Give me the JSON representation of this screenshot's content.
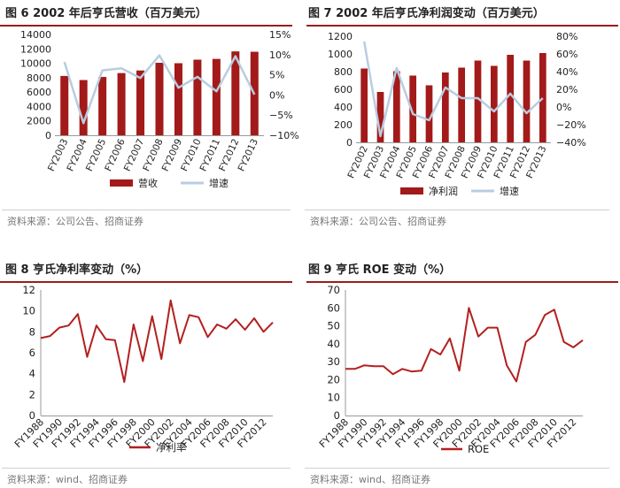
{
  "source_text_1": "资料来源：公司公告、招商证券",
  "source_text_2": "资料来源：wind、招商证券",
  "chart_data": [
    {
      "id": "c1",
      "type": "bar+line",
      "title": "图 6 2002 年后亨氏营收（百万美元）",
      "categories": [
        "FY2003",
        "FY2004",
        "FY2005",
        "FY2006",
        "FY2007",
        "FY2008",
        "FY2009",
        "FY2010",
        "FY2011",
        "FY2012",
        "FY2013"
      ],
      "bar_series": {
        "name": "营收",
        "color": "#a31a1a",
        "values": [
          8240,
          7670,
          8100,
          8640,
          9000,
          10070,
          10010,
          10500,
          10610,
          11650,
          11600
        ]
      },
      "line_series": {
        "name": "增速",
        "color": "#b8cde0",
        "values": [
          8.2,
          -7.0,
          6.1,
          6.6,
          4.2,
          9.8,
          1.8,
          4.5,
          0.9,
          9.6,
          0.1
        ]
      },
      "y_left": {
        "min": 0,
        "max": 14000,
        "step": 2000
      },
      "y_right": {
        "min": -10,
        "max": 15,
        "step": 5,
        "suffix": "%"
      },
      "right_tick_labels": [
        "15%",
        "10%",
        "5%",
        "0%",
        "−5%",
        "−10%"
      ]
    },
    {
      "id": "c2",
      "type": "bar+line",
      "title": "图 7 2002 年后亨氏净利润变动（百万美元）",
      "categories": [
        "FY2002",
        "FY2003",
        "FY2004",
        "FY2005",
        "FY2006",
        "FY2007",
        "FY2008",
        "FY2009",
        "FY2010",
        "FY2011",
        "FY2012",
        "FY2013"
      ],
      "bar_series": {
        "name": "净利润",
        "color": "#a31a1a",
        "values": [
          835,
          570,
          805,
          755,
          645,
          790,
          845,
          925,
          865,
          990,
          925,
          1010
        ]
      },
      "line_series": {
        "name": "增速",
        "color": "#b8cde0",
        "values": [
          74,
          -33,
          44,
          -8,
          -15,
          22,
          10,
          10,
          -5,
          15,
          -7,
          10
        ]
      },
      "y_left": {
        "min": 0,
        "max": 1200,
        "step": 200
      },
      "y_right": {
        "min": -40,
        "max": 80,
        "step": 20,
        "suffix": "%"
      },
      "right_tick_labels": [
        "80%",
        "60%",
        "40%",
        "20%",
        "0%",
        "−20%",
        "−40%"
      ]
    },
    {
      "id": "c3",
      "type": "line",
      "title": "图 8 亨氏净利率变动（%）",
      "categories": [
        "FY1988",
        "FY1989",
        "FY1990",
        "FY1991",
        "FY1992",
        "FY1993",
        "FY1994",
        "FY1995",
        "FY1996",
        "FY1997",
        "FY1998",
        "FY1999",
        "FY2000",
        "FY2001",
        "FY2002",
        "FY2003",
        "FY2004",
        "FY2005",
        "FY2006",
        "FY2007",
        "FY2008",
        "FY2009",
        "FY2010",
        "FY2011",
        "FY2012",
        "FY2013"
      ],
      "tick_labels": [
        "FY1988",
        "FY1990",
        "FY1992",
        "FY1994",
        "FY1996",
        "FY1998",
        "FY2000",
        "FY2002",
        "FY2004",
        "FY2006",
        "FY2008",
        "FY2010",
        "FY2012"
      ],
      "series": {
        "name": "净利率",
        "color": "#b3201f",
        "values": [
          7.4,
          7.6,
          8.4,
          8.6,
          9.7,
          5.6,
          8.6,
          7.3,
          7.2,
          3.2,
          8.7,
          5.2,
          9.5,
          5.4,
          11.0,
          6.9,
          9.6,
          9.4,
          7.5,
          8.7,
          8.3,
          9.2,
          8.2,
          9.3,
          8.0,
          8.9
        ]
      },
      "y": {
        "min": 0,
        "max": 12,
        "step": 2
      }
    },
    {
      "id": "c4",
      "type": "line",
      "title": "图 9 亨氏 ROE 变动（%）",
      "categories": [
        "FY1988",
        "FY1989",
        "FY1990",
        "FY1991",
        "FY1992",
        "FY1993",
        "FY1994",
        "FY1995",
        "FY1996",
        "FY1997",
        "FY1998",
        "FY1999",
        "FY2000",
        "FY2001",
        "FY2002",
        "FY2003",
        "FY2004",
        "FY2005",
        "FY2006",
        "FY2007",
        "FY2008",
        "FY2009",
        "FY2010",
        "FY2011",
        "FY2012",
        "FY2013"
      ],
      "tick_labels": [
        "FY1988",
        "FY1990",
        "FY1992",
        "FY1994",
        "FY1996",
        "FY1998",
        "FY2000",
        "FY2002",
        "FY2004",
        "FY2006",
        "FY2008",
        "FY2010",
        "FY2012"
      ],
      "series": {
        "name": "ROE",
        "color": "#b3201f",
        "values": [
          26,
          26,
          28,
          27.5,
          27.5,
          23,
          26,
          24.5,
          25,
          37,
          34,
          43,
          25,
          60,
          44,
          49,
          49,
          28,
          19,
          41,
          45,
          56,
          59,
          41,
          38,
          42
        ]
      },
      "y": {
        "min": 0,
        "max": 70,
        "step": 10
      }
    }
  ]
}
